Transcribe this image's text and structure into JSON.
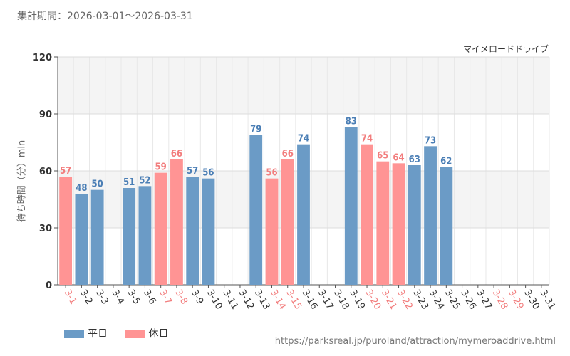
{
  "period_text": "集計期間：2026-03-01～2026-03-31",
  "attraction_name": "マイメロードドライブ",
  "source_url": "https://parksreal.jp/puroland/attraction/mymeroaddrive.html",
  "legend": [
    {
      "label": "平日",
      "color": "#6b9bc6"
    },
    {
      "label": "休日",
      "color": "#ff9494"
    }
  ],
  "chart_data": {
    "type": "bar",
    "title": "",
    "xlabel": "",
    "ylabel": "待ち時間（分）min",
    "ylim": [
      0,
      120
    ],
    "yticks": [
      0,
      30,
      60,
      90,
      120
    ],
    "grid": true,
    "legend_position": "bottom-left",
    "categories": [
      "3-1",
      "3-2",
      "3-3",
      "3-4",
      "3-5",
      "3-6",
      "3-7",
      "3-8",
      "3-9",
      "3-10",
      "3-11",
      "3-12",
      "3-13",
      "3-14",
      "3-15",
      "3-16",
      "3-17",
      "3-18",
      "3-19",
      "3-20",
      "3-21",
      "3-22",
      "3-23",
      "3-24",
      "3-25",
      "3-26",
      "3-27",
      "3-28",
      "3-29",
      "3-30",
      "3-31"
    ],
    "values": [
      57,
      48,
      50,
      null,
      51,
      52,
      59,
      66,
      57,
      56,
      null,
      null,
      79,
      56,
      66,
      74,
      null,
      null,
      83,
      74,
      65,
      64,
      63,
      73,
      62,
      null,
      null,
      null,
      null,
      null,
      null
    ],
    "day_type": [
      "holiday",
      "weekday",
      "weekday",
      "weekday",
      "weekday",
      "weekday",
      "holiday",
      "holiday",
      "weekday",
      "weekday",
      "weekday",
      "weekday",
      "weekday",
      "holiday",
      "holiday",
      "weekday",
      "weekday",
      "weekday",
      "weekday",
      "holiday",
      "holiday",
      "holiday",
      "weekday",
      "weekday",
      "weekday",
      "weekday",
      "weekday",
      "holiday",
      "holiday",
      "weekday",
      "weekday"
    ],
    "colors": {
      "weekday": "#6b9bc6",
      "holiday": "#ff9494",
      "weekday_label": "#4a7eb5",
      "holiday_label": "#f27d7d",
      "axis_text": "#333333"
    }
  }
}
